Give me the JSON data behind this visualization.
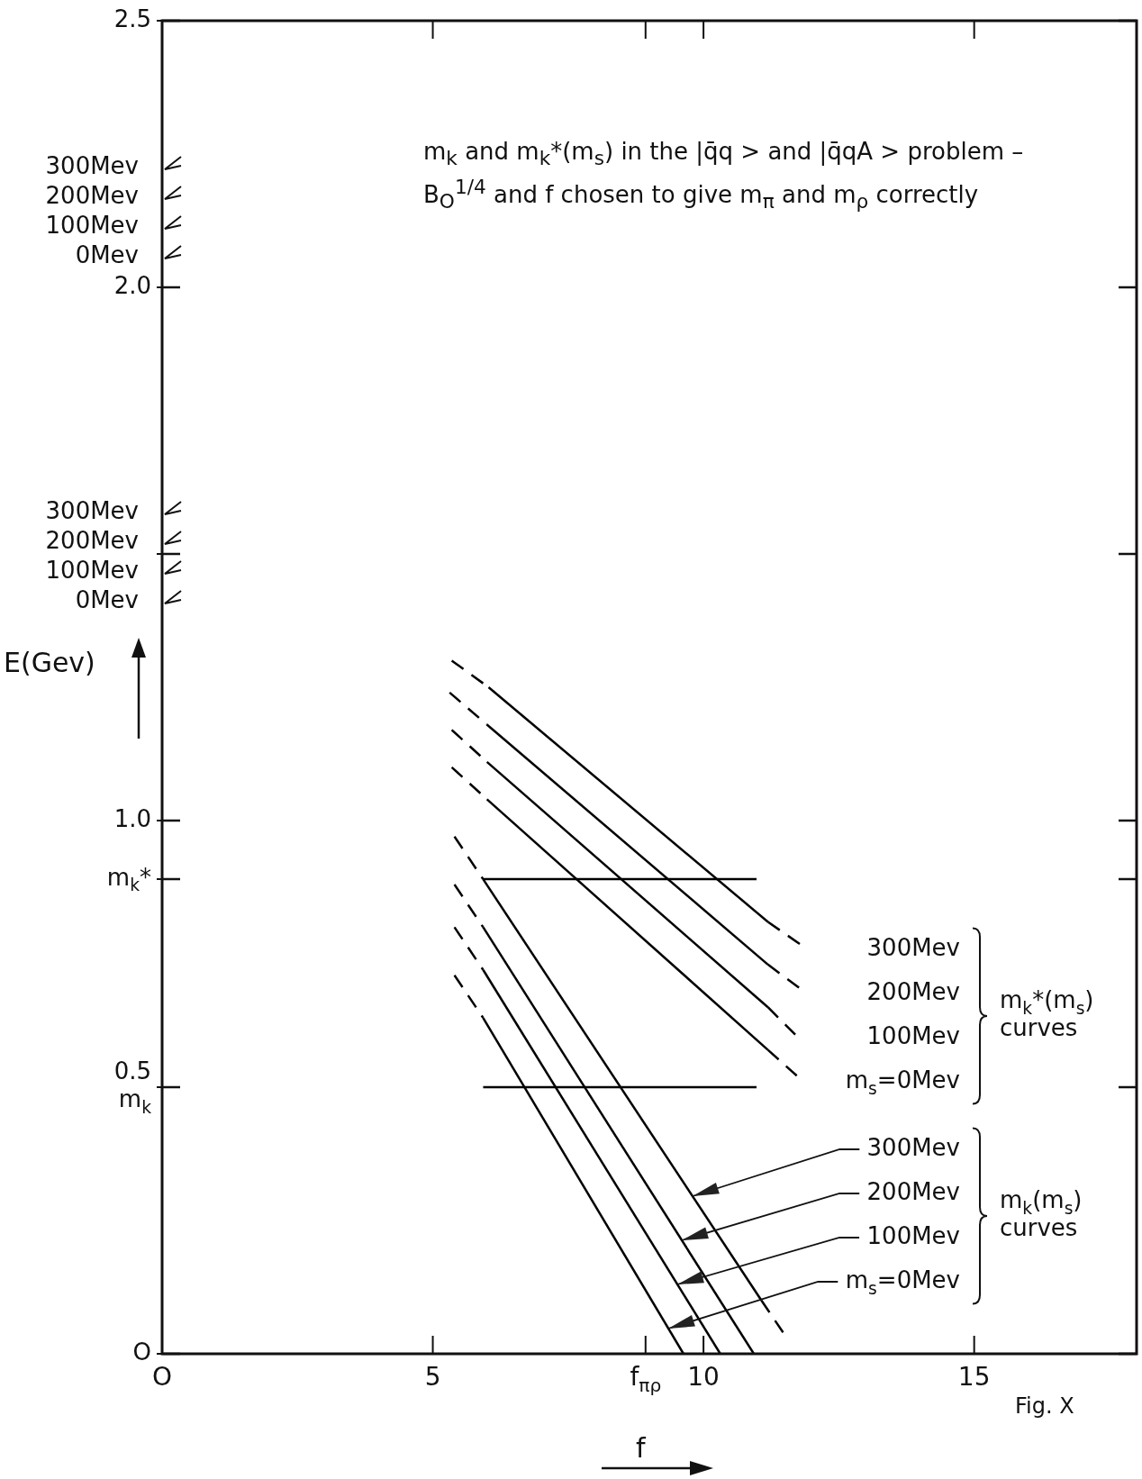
{
  "chart_data": {
    "type": "line",
    "title": "m$_{k}$ and m$_{k}$*(m$_{s}$) in the |q̄q > and |q̄qA > problem – B$_{O}$$^{1/4}$ and f chosen to give m$_{π}$ and m$_{ρ}$ correctly",
    "xlabel": "f",
    "ylabel": "E(Gev)",
    "xlim": [
      0,
      18
    ],
    "ylim": [
      0,
      2.5
    ],
    "xticks": [
      {
        "value": 0,
        "label": "O"
      },
      5,
      {
        "value": 8.93,
        "label": "f$_{πρ}$"
      },
      10,
      15
    ],
    "yticks": [
      {
        "value": 0,
        "label": "O"
      },
      {
        "value": 0.5,
        "label": "0.5\nm$_{k}$"
      },
      {
        "value": 0.89,
        "label": "m$_{k}$*"
      },
      {
        "value": 1,
        "label": "1.0"
      },
      {
        "value": 1.5,
        "label": null
      },
      {
        "value": 2,
        "label": "2.0"
      },
      2.5
    ],
    "annotations": [
      "m$_{k}$*(m$_{s}$)\ncurves",
      "m$_{k}$(m$_{s}$)\ncurves",
      "Fig. X",
      "300Mev",
      "200Mev",
      "100Mev",
      "0Mev",
      "300Mev",
      "200Mev",
      "100Mev",
      "0Mev"
    ],
    "series": [
      {
        "name": "300Mev",
        "color": "#000000",
        "x": [
          6.03,
          11.19
        ],
        "values": [
          1.25,
          0.81
        ]
      },
      {
        "name": "200Mev",
        "color": "#000000",
        "x": [
          6.0,
          11.19
        ],
        "values": [
          1.18,
          0.73
        ]
      },
      {
        "name": "100Mev",
        "color": "#000000",
        "x": [
          6.0,
          11.19
        ],
        "values": [
          1.11,
          0.65
        ]
      },
      {
        "name": "m$_{s}$=0Mev",
        "color": "#000000",
        "x": [
          6.0,
          11.19
        ],
        "values": [
          1.04,
          0.57
        ]
      },
      {
        "name": "300Mev",
        "color": "#000000",
        "x": [
          5.93,
          11.07
        ],
        "values": [
          0.89,
          0.1
        ]
      },
      {
        "name": "200Mev",
        "color": "#000000",
        "x": [
          5.93,
          10.93
        ],
        "values": [
          0.8,
          0
        ]
      },
      {
        "name": "100Mev",
        "color": "#000000",
        "x": [
          5.93,
          10.31
        ],
        "values": [
          0.72,
          0
        ]
      },
      {
        "name": "m$_{s}$=0Mev",
        "color": "#000000",
        "x": [
          5.93,
          9.63
        ],
        "values": [
          0.63,
          0
        ]
      },
      {
        "color": "#000000",
        "line_style": "dashed",
        "x": [
          5.35,
          6.03
        ],
        "values": [
          1.3,
          1.25
        ]
      },
      {
        "color": "#000000",
        "line_style": "dashed",
        "x": [
          11.19,
          11.9
        ],
        "values": [
          0.81,
          0.76
        ]
      },
      {
        "color": "#000000",
        "line_style": "dashed",
        "x": [
          5.31,
          6.0
        ],
        "values": [
          1.24,
          1.18
        ]
      },
      {
        "color": "#000000",
        "line_style": "dashed",
        "x": [
          11.19,
          11.85
        ],
        "values": [
          0.73,
          0.68
        ]
      },
      {
        "color": "#000000",
        "line_style": "dashed",
        "x": [
          5.35,
          6.0
        ],
        "values": [
          1.17,
          1.11
        ]
      },
      {
        "color": "#000000",
        "line_style": "dashed",
        "x": [
          11.19,
          11.78
        ],
        "values": [
          0.65,
          0.59
        ]
      },
      {
        "color": "#000000",
        "line_style": "dashed",
        "x": [
          5.35,
          6.0
        ],
        "values": [
          1.1,
          1.04
        ]
      },
      {
        "color": "#000000",
        "line_style": "dashed",
        "x": [
          11.19,
          11.85
        ],
        "values": [
          0.57,
          0.51
        ]
      },
      {
        "color": "#000000",
        "line_style": "dashed",
        "x": [
          5.4,
          5.93
        ],
        "values": [
          0.97,
          0.89
        ]
      },
      {
        "color": "#000000",
        "line_style": "dashed",
        "x": [
          11.07,
          11.47
        ],
        "values": [
          0.1,
          0.04
        ]
      },
      {
        "color": "#000000",
        "line_style": "dashed",
        "x": [
          5.4,
          5.93
        ],
        "values": [
          0.88,
          0.8
        ]
      },
      {
        "color": "#000000",
        "line_style": "dashed",
        "x": [
          5.4,
          5.93
        ],
        "values": [
          0.8,
          0.72
        ]
      },
      {
        "color": "#000000",
        "line_style": "dashed",
        "x": [
          5.4,
          5.93
        ],
        "values": [
          0.71,
          0.63
        ]
      },
      {
        "color": "#000000",
        "x": [
          5.93,
          10.98
        ],
        "values": [
          0.89,
          0.89
        ]
      },
      {
        "color": "#000000",
        "x": [
          5.93,
          10.98
        ],
        "values": [
          0.5,
          0.5
        ]
      }
    ]
  }
}
